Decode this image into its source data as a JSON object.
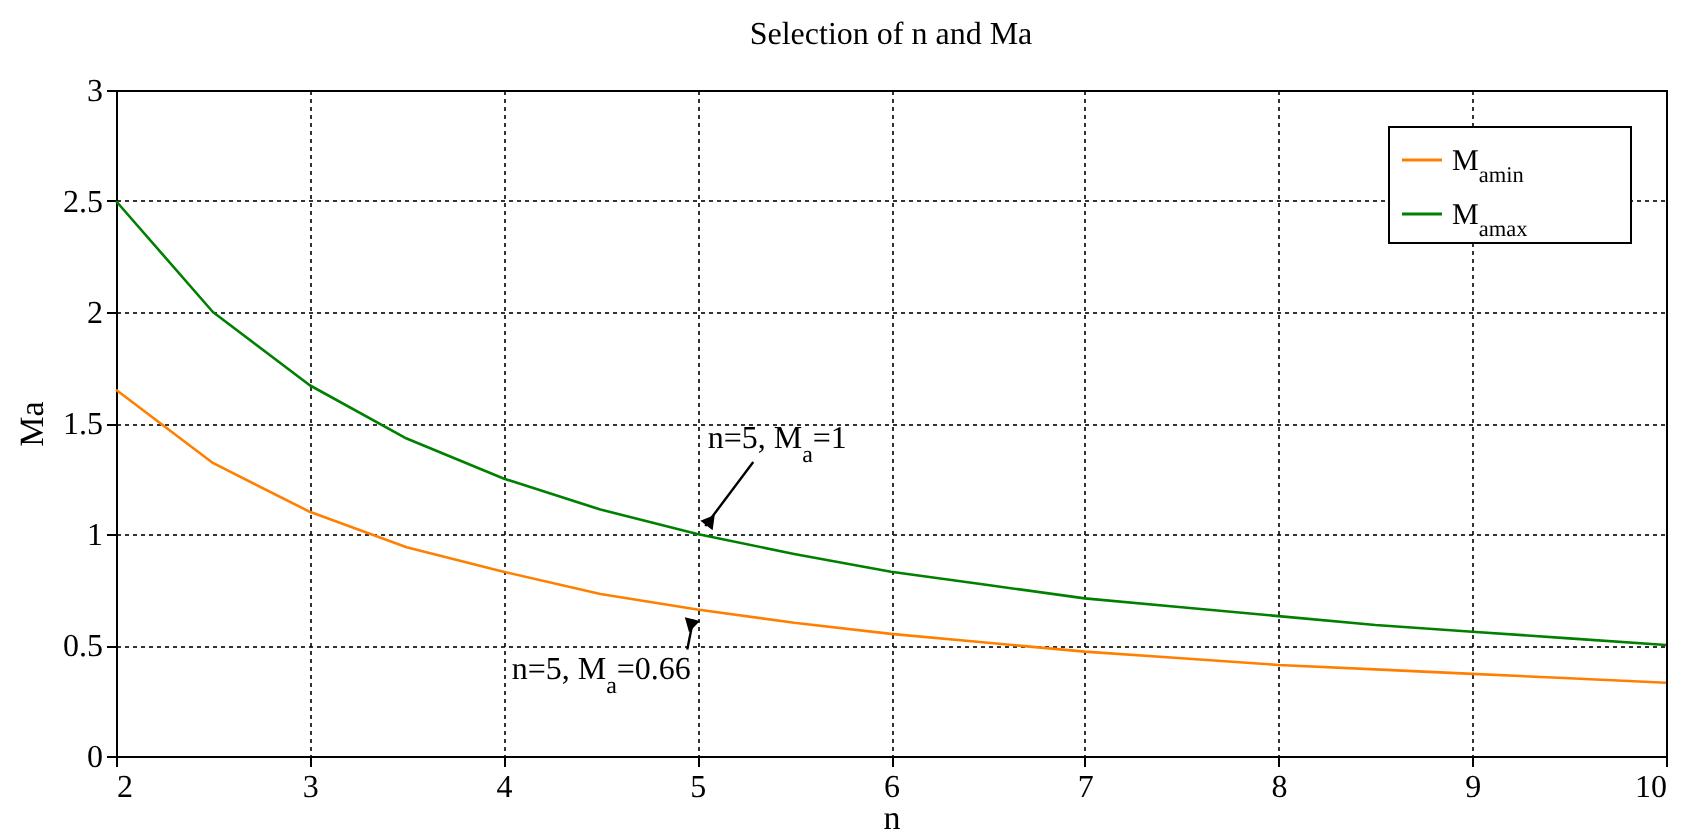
{
  "chart_data": {
    "type": "line",
    "title": "Selection of n and Ma",
    "xlabel": "n",
    "ylabel": "Ma",
    "x": [
      2,
      2.5,
      3,
      3.5,
      4,
      4.5,
      5,
      5.5,
      6,
      6.5,
      7,
      7.5,
      8,
      8.5,
      9,
      9.5,
      10
    ],
    "series": [
      {
        "name": "M$_{amin}$",
        "color": "#ff8000",
        "values": [
          1.65,
          1.32,
          1.1,
          0.94,
          0.83,
          0.73,
          0.66,
          0.6,
          0.55,
          0.51,
          0.47,
          0.44,
          0.41,
          0.39,
          0.37,
          0.35,
          0.33
        ]
      },
      {
        "name": "M$_{amax}$",
        "color": "#008000",
        "values": [
          2.5,
          2.0,
          1.67,
          1.43,
          1.25,
          1.11,
          1.0,
          0.91,
          0.83,
          0.77,
          0.71,
          0.67,
          0.63,
          0.59,
          0.56,
          0.53,
          0.5
        ]
      }
    ],
    "xlim": [
      2,
      10
    ],
    "xticks": [
      2,
      3,
      4,
      5,
      6,
      7,
      8,
      9,
      10
    ],
    "ylim": [
      0,
      3
    ],
    "yticks": [
      0,
      0.5,
      1,
      1.5,
      2,
      2.5,
      3
    ],
    "grid": true,
    "legend": "top right",
    "line_style": "solid",
    "annotations": [
      {
        "text": "n=5, M$_{a}$=1",
        "x": 5,
        "y": 1
      },
      {
        "text": "n=5, M$_{a}$=0.66",
        "x": 5,
        "y": 0.66
      }
    ]
  }
}
